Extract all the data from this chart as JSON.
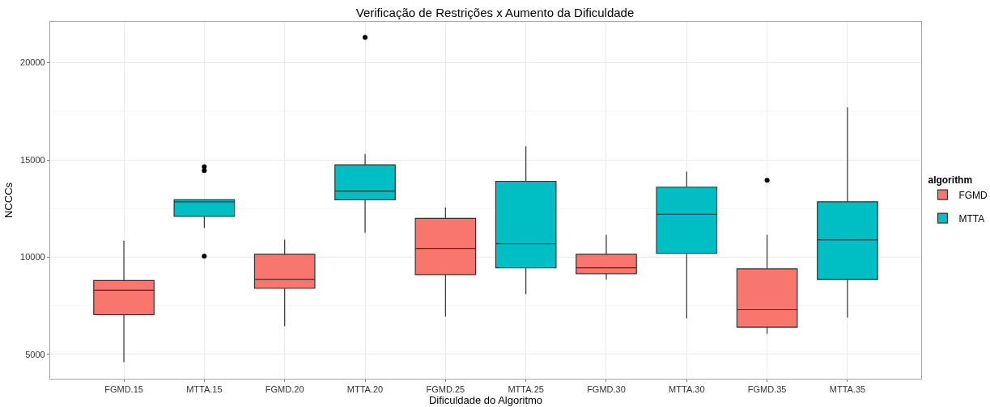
{
  "chart_data": {
    "type": "box",
    "title": "Verificação de Restrições x Aumento da Dificuldade",
    "xlabel": "Dificuldade do Algoritmo",
    "ylabel": "NCCCs",
    "legend_title": "algorithm",
    "categories": [
      "FGMD.15",
      "MTTA.15",
      "FGMD.20",
      "MTTA.20",
      "FGMD.25",
      "MTTA.25",
      "FGMD.30",
      "MTTA.30",
      "FGMD.35",
      "MTTA.35"
    ],
    "series": [
      {
        "name": "FGMD",
        "color": "#f8766d",
        "boxes": [
          {
            "low": 4600,
            "q1": 7050,
            "median": 8300,
            "q3": 8800,
            "high": 10850
          },
          null,
          {
            "low": 6450,
            "q1": 8400,
            "median": 8850,
            "q3": 10150,
            "high": 10900
          },
          null,
          {
            "low": 6950,
            "q1": 9100,
            "median": 10450,
            "q3": 12000,
            "high": 12550
          },
          null,
          {
            "low": 8850,
            "q1": 9150,
            "median": 9450,
            "q3": 10150,
            "high": 11150
          },
          null,
          {
            "low": 6050,
            "q1": 6400,
            "median": 7300,
            "q3": 9400,
            "high": 11150,
            "outliers": [
              13950
            ]
          },
          null
        ]
      },
      {
        "name": "MTTA",
        "color": "#00bfc4",
        "boxes": [
          null,
          {
            "low": 11500,
            "q1": 12100,
            "median": 12850,
            "q3": 12950,
            "high": 12950,
            "outliers": [
              14650,
              14450,
              10050
            ]
          },
          null,
          {
            "low": 11250,
            "q1": 12950,
            "median": 13400,
            "q3": 14750,
            "high": 15300,
            "outliers": [
              21300
            ]
          },
          null,
          {
            "low": 8100,
            "q1": 9450,
            "median": 10700,
            "q3": 13900,
            "high": 15700
          },
          null,
          {
            "low": 6850,
            "q1": 10200,
            "median": 12200,
            "q3": 13600,
            "high": 14400
          },
          null,
          {
            "low": 6900,
            "q1": 8850,
            "median": 10900,
            "q3": 12850,
            "high": 17700
          }
        ]
      }
    ],
    "ylim": [
      3750,
      22100
    ],
    "yticks": [
      5000,
      10000,
      15000,
      20000
    ],
    "grid": true,
    "legend": "right"
  }
}
